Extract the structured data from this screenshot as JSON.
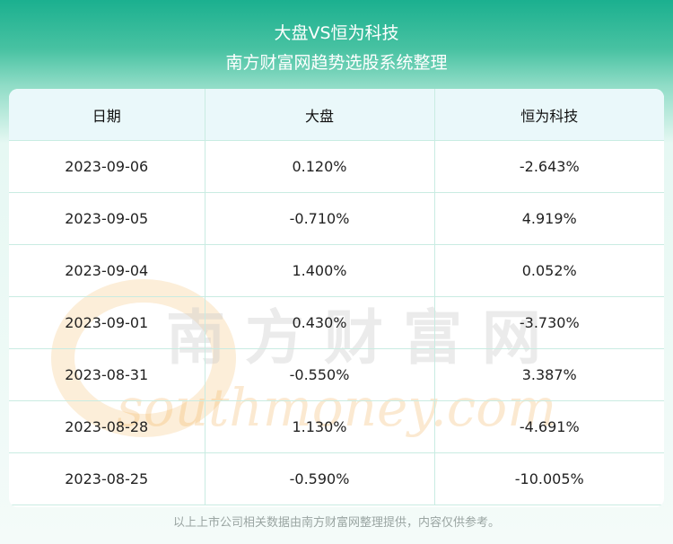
{
  "header": {
    "title": "大盘VS恒为科技",
    "subtitle": "南方财富网趋势选股系统整理"
  },
  "table": {
    "columns": [
      "日期",
      "大盘",
      "恒为科技"
    ],
    "rows": [
      [
        "2023-09-06",
        "0.120%",
        "-2.643%"
      ],
      [
        "2023-09-05",
        "-0.710%",
        "4.919%"
      ],
      [
        "2023-09-04",
        "1.400%",
        "0.052%"
      ],
      [
        "2023-09-01",
        "0.430%",
        "-3.730%"
      ],
      [
        "2023-08-31",
        "-0.550%",
        "3.387%"
      ],
      [
        "2023-08-28",
        "1.130%",
        "-4.691%"
      ],
      [
        "2023-08-25",
        "-0.590%",
        "-10.005%"
      ]
    ]
  },
  "watermark": {
    "cn": "南方财富网",
    "en": "southmoney.com"
  },
  "footer": {
    "note": "以上上市公司相关数据由南方财富网整理提供，内容仅供参考。"
  },
  "colors": {
    "header_green": "#1bb08f",
    "table_header_bg": "#eaf8fa",
    "grid_line": "#c9ece2",
    "watermark_orange": "#f3b25c"
  }
}
